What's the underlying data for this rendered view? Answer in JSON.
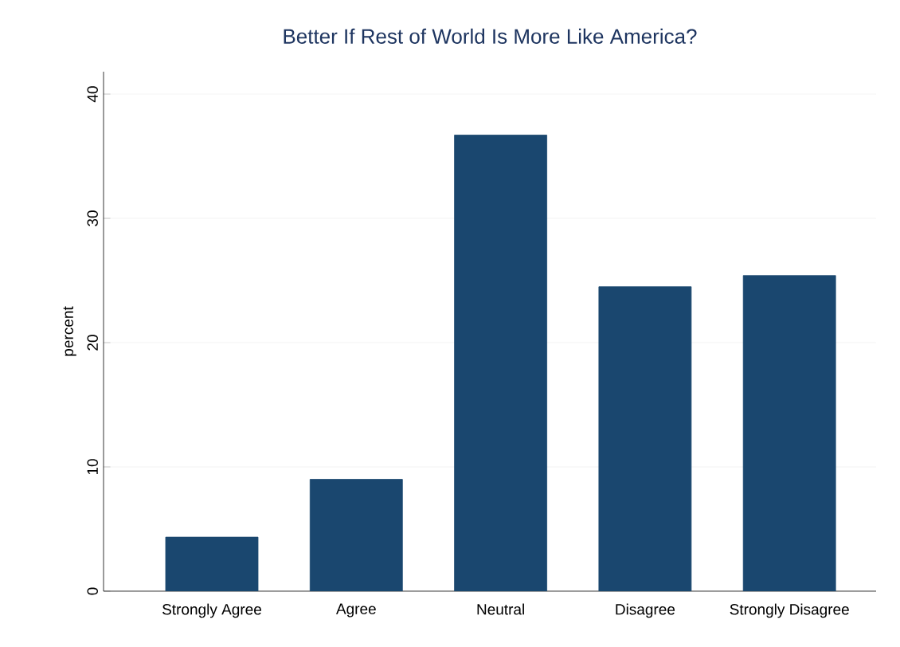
{
  "chart_data": {
    "type": "bar",
    "title": "Better If Rest of World Is More Like America?",
    "ylabel": "percent",
    "categories": [
      "Strongly Agree",
      "Agree",
      "Neutral",
      "Disagree",
      "Strongly Disagree"
    ],
    "values": [
      4.35,
      9.0,
      36.7,
      24.5,
      25.4
    ],
    "color": "#1a476f",
    "ylim": [
      0,
      41.8
    ],
    "yticks": [
      0,
      10,
      20,
      30,
      40
    ],
    "grid": "y"
  }
}
